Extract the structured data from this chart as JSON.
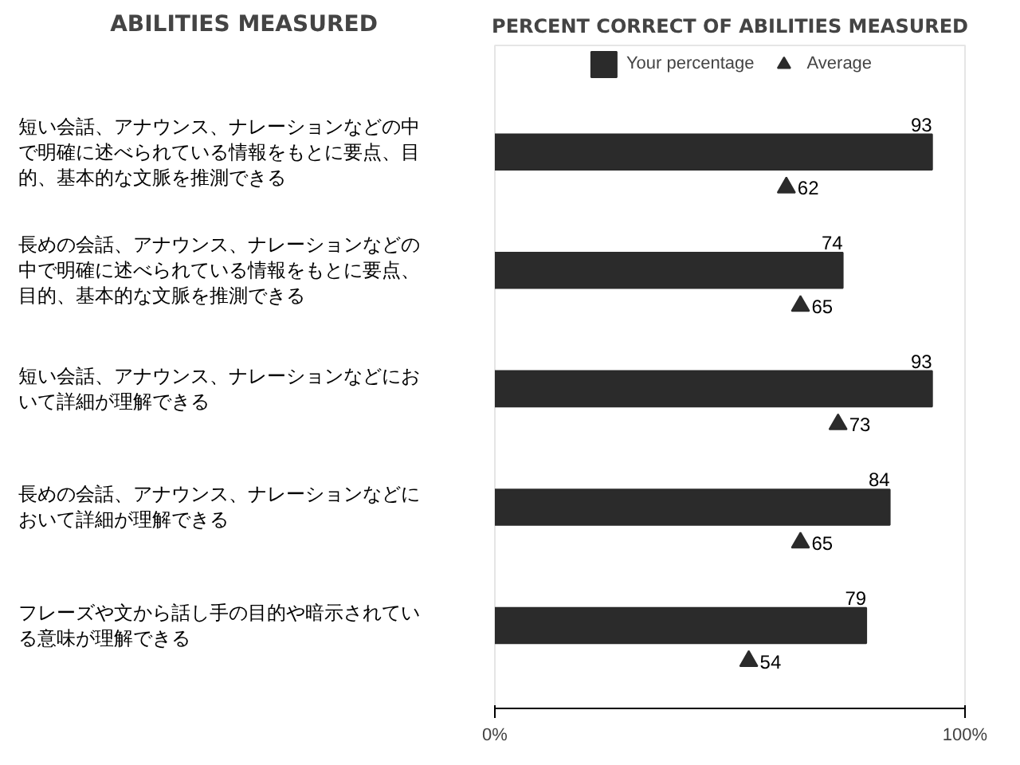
{
  "chart_data": {
    "type": "bar",
    "orientation": "horizontal",
    "title": "PERCENT CORRECT OF ABILITIES MEASURED",
    "ylabel": "ABILITIES MEASURED",
    "categories": [
      "短い会話、アナウンス、ナレーションなどの中で明確に述べられている情報をもとに要点、目的、基本的な文脈を推測できる",
      "長めの会話、アナウンス、ナレーションなどの中で明確に述べられている情報をもとに要点、目的、基本的な文脈を推測できる",
      "短い会話、アナウンス、ナレーションなどにおいて詳細が理解できる",
      "長めの会話、アナウンス、ナレーションなどにおいて詳細が理解できる",
      "フレーズや文から話し手の目的や暗示されている意味が理解できる"
    ],
    "series": [
      {
        "name": "Your percentage",
        "color": "#2b2b2b",
        "values": [
          93,
          74,
          93,
          84,
          79
        ]
      },
      {
        "name": "Average",
        "type": "scatter",
        "color": "#2b2b2b",
        "values": [
          62,
          65,
          73,
          65,
          54
        ]
      }
    ],
    "marker": "triangle",
    "xlim": [
      0,
      100
    ],
    "xticks": [
      {
        "value": 0,
        "label": "0%"
      },
      {
        "value": 100,
        "label": "100%"
      }
    ],
    "data_labels": true,
    "legend": "top",
    "grid": false
  }
}
